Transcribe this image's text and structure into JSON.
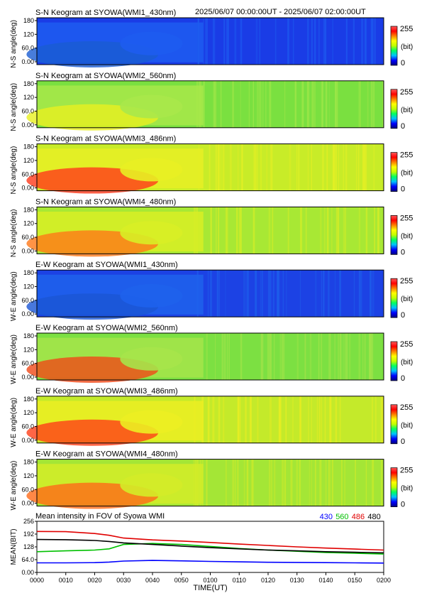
{
  "header": {
    "time_range": "2025/06/07 00:00:00UT - 2025/06/07 02:00:00UT"
  },
  "colorbar": {
    "max_label": "255",
    "unit_label": "(bit)",
    "min_label": "0",
    "stops": [
      "#00007f",
      "#0000ff",
      "#00c0ff",
      "#00ff60",
      "#c0ff00",
      "#ffff00",
      "#ff8000",
      "#ff0000",
      "#ff5a5a"
    ]
  },
  "panels": [
    {
      "title": "S-N Keogram at SYOWA(WMI1_430nm)",
      "ylabel": "N-S angle(deg)",
      "base": "#1a3ce6",
      "var": "#1e5cf0",
      "hot": "#1a5cd2",
      "profile": "blue"
    },
    {
      "title": "S-N Keogram at SYOWA(WMI2_560nm)",
      "ylabel": "N-S angle(deg)",
      "base": "#7ae040",
      "var": "#a8e84a",
      "hot": "#e8f020",
      "profile": "green"
    },
    {
      "title": "S-N Keogram at SYOWA(WMI3_486nm)",
      "ylabel": "N-S angle(deg)",
      "base": "#c8ec28",
      "var": "#e8f024",
      "hot": "#ff3a1a",
      "profile": "red"
    },
    {
      "title": "S-N Keogram at SYOWA(WMI4_480nm)",
      "ylabel": "N-S angle(deg)",
      "base": "#a8e834",
      "var": "#d8ee26",
      "hot": "#ff7818",
      "profile": "orange"
    },
    {
      "title": "E-W Keogram at SYOWA(WMI1_430nm)",
      "ylabel": "W-E angle(deg)",
      "base": "#1c42e4",
      "var": "#1e62ec",
      "hot": "#1a56d4",
      "profile": "blue"
    },
    {
      "title": "E-W Keogram at SYOWA(WMI2_560nm)",
      "ylabel": "W-E angle(deg)",
      "base": "#7ce042",
      "var": "#a6e44a",
      "hot": "#f04818",
      "profile": "green"
    },
    {
      "title": "E-W Keogram at SYOWA(WMI3_486nm)",
      "ylabel": "W-E angle(deg)",
      "base": "#c4ea2a",
      "var": "#ecee22",
      "hot": "#ff3e18",
      "profile": "red"
    },
    {
      "title": "E-W Keogram at SYOWA(WMI4_480nm)",
      "ylabel": "W-E angle(deg)",
      "base": "#a4e636",
      "var": "#d4ec28",
      "hot": "#ff6a18",
      "profile": "orange"
    }
  ],
  "keogram_yticks": [
    "180",
    "120",
    "60.0",
    "0.00"
  ],
  "chart_data": {
    "type": "line",
    "title": "Mean intensity in FOV of Syowa WMI",
    "xlabel": "TIME(UT)",
    "ylabel": "MEAN(BIT)",
    "ylim": [
      0,
      256
    ],
    "yticks": [
      "256",
      "192",
      "128",
      "64.0",
      "0.00"
    ],
    "ytick_values": [
      256,
      192,
      128,
      64,
      0
    ],
    "xticks": [
      "0000",
      "0010",
      "0020",
      "0030",
      "0040",
      "0050",
      "0100",
      "0110",
      "0120",
      "0130",
      "0140",
      "0150",
      "0200"
    ],
    "x": [
      0,
      10,
      20,
      25,
      30,
      40,
      50,
      60,
      70,
      80,
      90,
      100,
      110,
      120
    ],
    "series": [
      {
        "name": "430",
        "color": "#0000ff",
        "values": [
          48,
          48,
          49,
          52,
          57,
          60,
          58,
          55,
          53,
          51,
          50,
          49,
          48,
          47
        ]
      },
      {
        "name": "560",
        "color": "#00c000",
        "values": [
          104,
          108,
          112,
          118,
          140,
          145,
          140,
          130,
          120,
          112,
          106,
          100,
          96,
          92
        ]
      },
      {
        "name": "486",
        "color": "#e00000",
        "values": [
          205,
          204,
          195,
          186,
          172,
          163,
          157,
          150,
          142,
          135,
          128,
          122,
          117,
          112
        ]
      },
      {
        "name": "480",
        "color": "#000000",
        "values": [
          165,
          164,
          160,
          155,
          148,
          140,
          132,
          124,
          118,
          112,
          108,
          104,
          101,
          98
        ]
      }
    ]
  }
}
